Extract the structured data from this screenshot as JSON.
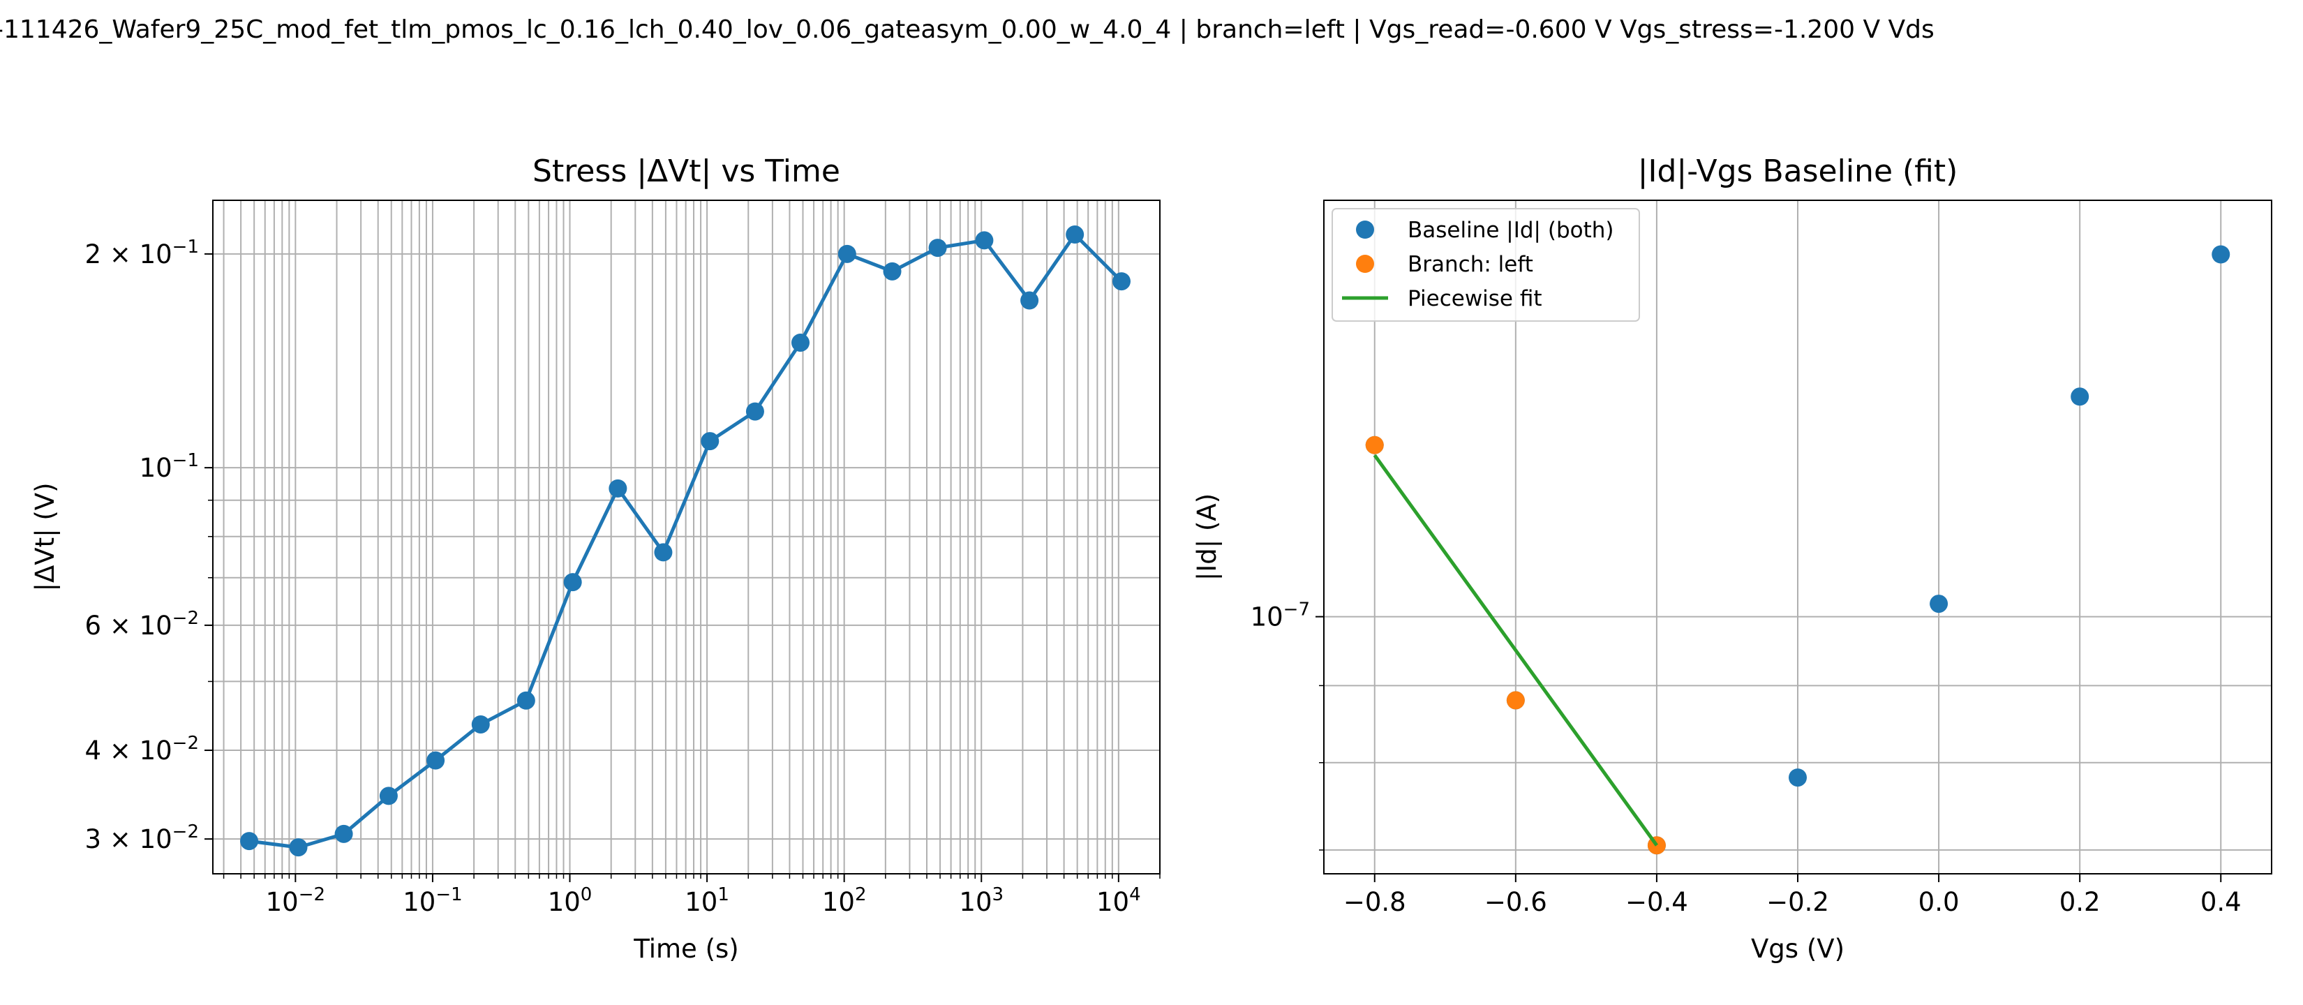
{
  "suptitle": "-111426_Wafer9_25C_mod_fet_tlm_pmos_lc_0.16_lch_0.40_lov_0.06_gateasym_0.00_w_4.0_4  |  branch=left  |  Vgs_read=-0.600 V  Vgs_stress=-1.200 V  Vds",
  "colors": {
    "blue": "#1f77b4",
    "orange": "#ff7f0e",
    "green": "#2ca02c",
    "grid": "#b0b0b0"
  },
  "chart_data": [
    {
      "type": "line",
      "title": "Stress |ΔVt| vs Time",
      "xlabel": "Time (s)",
      "ylabel": "|ΔVt| (V)",
      "xscale": "log",
      "yscale": "log",
      "xlim": [
        0.0025,
        20000
      ],
      "ylim": [
        0.0268,
        0.238
      ],
      "grid": "on (major and minor)",
      "xticks": [
        {
          "v": 0.01,
          "base": "10",
          "exp": "−2"
        },
        {
          "v": 0.1,
          "base": "10",
          "exp": "−1"
        },
        {
          "v": 1,
          "base": "10",
          "exp": "0"
        },
        {
          "v": 10,
          "base": "10",
          "exp": "1"
        },
        {
          "v": 100,
          "base": "10",
          "exp": "2"
        },
        {
          "v": 1000,
          "base": "10",
          "exp": "3"
        },
        {
          "v": 10000,
          "base": "10",
          "exp": "4"
        }
      ],
      "yticks": [
        {
          "v": 0.2,
          "base": "2 × 10",
          "exp": "−1"
        },
        {
          "v": 0.1,
          "base": "10",
          "exp": "−1"
        },
        {
          "v": 0.06,
          "base": "6 × 10",
          "exp": "−2"
        },
        {
          "v": 0.04,
          "base": "4 × 10",
          "exp": "−2"
        },
        {
          "v": 0.03,
          "base": "3 × 10",
          "exp": "−2"
        }
      ],
      "series": [
        {
          "color": "#1f77b4",
          "x": [
            0.0046,
            0.0105,
            0.0225,
            0.0478,
            0.105,
            0.224,
            0.48,
            1.05,
            2.24,
            4.8,
            10.5,
            22.4,
            48,
            105,
            224,
            480,
            1050,
            2240,
            4800,
            10500
          ],
          "y": [
            0.0298,
            0.0292,
            0.0305,
            0.0345,
            0.0387,
            0.0435,
            0.047,
            0.069,
            0.0935,
            0.076,
            0.109,
            0.12,
            0.15,
            0.2,
            0.189,
            0.204,
            0.209,
            0.172,
            0.213,
            0.183
          ]
        }
      ]
    },
    {
      "type": "scatter",
      "title": "|Id|-Vgs Baseline (fit)",
      "xlabel": "Vgs (V)",
      "ylabel": "|Id| (A)",
      "xscale": "linear",
      "yscale": "log",
      "xlim": [
        -0.872,
        0.472
      ],
      "ylim": [
        6.75e-08,
        1.89e-07
      ],
      "grid": "on (major and minor)",
      "xticks": [
        {
          "v": -0.8,
          "label": "−0.8"
        },
        {
          "v": -0.6,
          "label": "−0.6"
        },
        {
          "v": -0.4,
          "label": "−0.4"
        },
        {
          "v": -0.2,
          "label": "−0.2"
        },
        {
          "v": 0.0,
          "label": "0.0"
        },
        {
          "v": 0.2,
          "label": "0.2"
        },
        {
          "v": 0.4,
          "label": "0.4"
        }
      ],
      "yticks": [
        {
          "v": 1e-07,
          "base": "10",
          "exp": "−7"
        }
      ],
      "legend_position": "upper left",
      "series": [
        {
          "name": "Baseline |Id| (both)",
          "kind": "scatter",
          "color": "#1f77b4",
          "x": [
            -0.8,
            -0.6,
            -0.4,
            -0.2,
            0.0,
            0.2,
            0.4
          ],
          "y": [
            1.3e-07,
            8.8e-08,
            7.05e-08,
            7.82e-08,
            1.02e-07,
            1.4e-07,
            1.74e-07
          ]
        },
        {
          "name": "Branch: left",
          "kind": "scatter",
          "color": "#ff7f0e",
          "x": [
            -0.8,
            -0.6,
            -0.4
          ],
          "y": [
            1.3e-07,
            8.8e-08,
            7.05e-08
          ]
        },
        {
          "name": "Piecewise fit",
          "kind": "line",
          "color": "#2ca02c",
          "x": [
            -0.8,
            -0.4
          ],
          "y": [
            1.28e-07,
            7.05e-08
          ]
        }
      ]
    }
  ]
}
